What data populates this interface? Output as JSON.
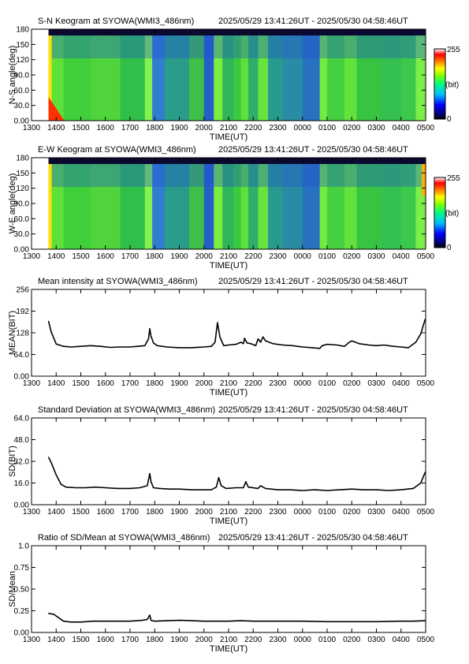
{
  "colors": {
    "axis": "#000000",
    "line": "#000000"
  },
  "keograms": [
    {
      "title": "S-N Keogram at SYOWA(WMI3_486nm)",
      "time_range": "2025/05/29 13:41:26UT - 2025/05/30 04:58:46UT",
      "ylabel": "N-S angle(deg)",
      "xlabel": "TIME(UT)",
      "yticks": [
        "0.00",
        "30.0",
        "60.0",
        "90.0",
        "120",
        "150",
        "180"
      ],
      "xticks": [
        "1300",
        "1400",
        "1500",
        "1600",
        "1700",
        "1800",
        "1900",
        "2000",
        "2100",
        "2200",
        "2300",
        "0000",
        "0100",
        "0200",
        "0300",
        "0400",
        "0500"
      ],
      "colorbar": {
        "max": "255",
        "min": "0",
        "unit": "(bit)"
      }
    },
    {
      "title": "E-W Keogram at SYOWA(WMI3_486nm)",
      "time_range": "2025/05/29 13:41:26UT - 2025/05/30 04:58:46UT",
      "ylabel": "W-E angle(deg)",
      "xlabel": "TIME(UT)",
      "yticks": [
        "0.00",
        "30.0",
        "60.0",
        "90.0",
        "120",
        "150",
        "180"
      ],
      "xticks": [
        "1300",
        "1400",
        "1500",
        "1600",
        "1700",
        "1800",
        "1900",
        "2000",
        "2100",
        "2200",
        "2300",
        "0000",
        "0100",
        "0200",
        "0300",
        "0400",
        "0500"
      ],
      "colorbar": {
        "max": "255",
        "min": "0",
        "unit": "(bit)"
      }
    }
  ],
  "chart_data": [
    {
      "type": "line",
      "title": "Mean intensity at SYOWA(WMI3_486nm)",
      "time_range": "2025/05/29 13:41:26UT - 2025/05/30 04:58:46UT",
      "xlabel": "TIME(UT)",
      "ylabel": "MEAN(BIT)",
      "ylim": [
        0,
        256
      ],
      "yticks": [
        "0.00",
        "64.0",
        "128",
        "192",
        "256"
      ],
      "xticks": [
        "1300",
        "1400",
        "1500",
        "1600",
        "1700",
        "1800",
        "1900",
        "2000",
        "2100",
        "2200",
        "2300",
        "0000",
        "0100",
        "0200",
        "0300",
        "0400",
        "0500"
      ],
      "series": [
        {
          "x": [
            13.69,
            13.8,
            14.0,
            14.3,
            14.6,
            15.0,
            15.4,
            15.8,
            16.2,
            16.6,
            17.0,
            17.3,
            17.6,
            17.75,
            17.8,
            17.85,
            17.95,
            18.1,
            18.5,
            19.0,
            19.5,
            20.0,
            20.3,
            20.45,
            20.55,
            20.65,
            20.8,
            21.0,
            21.3,
            21.5,
            21.6,
            21.65,
            21.75,
            21.9,
            22.1,
            22.2,
            22.3,
            22.4,
            22.5,
            22.8,
            23.2,
            23.6,
            24.0,
            24.4,
            24.7,
            24.8,
            25.0,
            25.4,
            25.7,
            25.9,
            26.0,
            26.3,
            26.7,
            27.0,
            27.3,
            27.7,
            28.0,
            28.3,
            28.6,
            28.8,
            28.98
          ],
          "y": [
            162,
            130,
            95,
            88,
            86,
            88,
            90,
            88,
            85,
            86,
            86,
            88,
            90,
            110,
            140,
            118,
            98,
            90,
            86,
            84,
            84,
            86,
            88,
            100,
            158,
            115,
            90,
            92,
            94,
            100,
            96,
            112,
            98,
            96,
            90,
            110,
            100,
            116,
            104,
            96,
            92,
            90,
            86,
            84,
            82,
            90,
            94,
            92,
            88,
            100,
            104,
            96,
            92,
            90,
            92,
            88,
            86,
            84,
            100,
            125,
            168
          ]
        }
      ]
    },
    {
      "type": "line",
      "title": "Standard Deviation at SYOWA(WMI3_486nm)",
      "time_range": "2025/05/29 13:41:26UT - 2025/05/30 04:58:46UT",
      "xlabel": "TIME(UT)",
      "ylabel": "SD(BIT)",
      "ylim": [
        0,
        64
      ],
      "yticks": [
        "0.00",
        "16.0",
        "32.0",
        "48.0",
        "64.0"
      ],
      "xticks": [
        "1300",
        "1400",
        "1500",
        "1600",
        "1700",
        "1800",
        "1900",
        "2000",
        "2100",
        "2200",
        "2300",
        "0000",
        "0100",
        "0200",
        "0300",
        "0400",
        "0500"
      ],
      "series": [
        {
          "x": [
            13.69,
            13.8,
            14.0,
            14.2,
            14.4,
            14.8,
            15.2,
            15.6,
            16.0,
            16.5,
            17.0,
            17.4,
            17.7,
            17.8,
            17.85,
            17.95,
            18.2,
            18.6,
            19.0,
            19.5,
            20.0,
            20.3,
            20.5,
            20.6,
            20.7,
            20.9,
            21.3,
            21.6,
            21.7,
            21.8,
            22.2,
            22.3,
            22.5,
            23.0,
            23.5,
            24.0,
            24.5,
            25.0,
            25.5,
            26.0,
            26.5,
            27.0,
            27.5,
            28.0,
            28.5,
            28.8,
            28.98
          ],
          "y": [
            35,
            31,
            22,
            15,
            13,
            12.5,
            12.5,
            13,
            12.5,
            12,
            12,
            12.5,
            14,
            23,
            17,
            12.5,
            12,
            11.5,
            11.5,
            11,
            11,
            11,
            13,
            20,
            14,
            12,
            12.5,
            12.5,
            17,
            13,
            12,
            14,
            12,
            11,
            11,
            10.5,
            11,
            10.5,
            11,
            11.5,
            11,
            11,
            10.5,
            11,
            12,
            16,
            24
          ]
        }
      ]
    },
    {
      "type": "line",
      "title": "Ratio of SD/Mean at SYOWA(WMI3_486nm)",
      "time_range": "2025/05/29 13:41:26UT - 2025/05/30 04:58:46UT",
      "xlabel": "TIME(UT)",
      "ylabel": "SD/Mean",
      "ylim": [
        0,
        1
      ],
      "yticks": [
        "0.00",
        "0.25",
        "0.50",
        "0.75",
        "1.0"
      ],
      "xticks": [
        "1300",
        "1400",
        "1500",
        "1600",
        "1700",
        "1800",
        "1900",
        "2000",
        "2100",
        "2200",
        "2300",
        "0000",
        "0100",
        "0200",
        "0300",
        "0400",
        "0500"
      ],
      "series": [
        {
          "x": [
            13.69,
            13.9,
            14.1,
            14.3,
            14.6,
            15.0,
            15.5,
            16.0,
            16.5,
            17.0,
            17.5,
            17.7,
            17.8,
            17.85,
            18.0,
            18.5,
            19.0,
            19.5,
            20.0,
            20.5,
            21.0,
            21.5,
            22.0,
            22.5,
            23.0,
            24.0,
            25.0,
            26.0,
            27.0,
            28.0,
            28.5,
            28.98
          ],
          "y": [
            0.22,
            0.21,
            0.17,
            0.13,
            0.12,
            0.12,
            0.13,
            0.13,
            0.13,
            0.13,
            0.14,
            0.15,
            0.2,
            0.14,
            0.13,
            0.135,
            0.14,
            0.135,
            0.13,
            0.13,
            0.13,
            0.135,
            0.13,
            0.13,
            0.13,
            0.13,
            0.125,
            0.125,
            0.125,
            0.13,
            0.13,
            0.135
          ]
        }
      ]
    }
  ]
}
